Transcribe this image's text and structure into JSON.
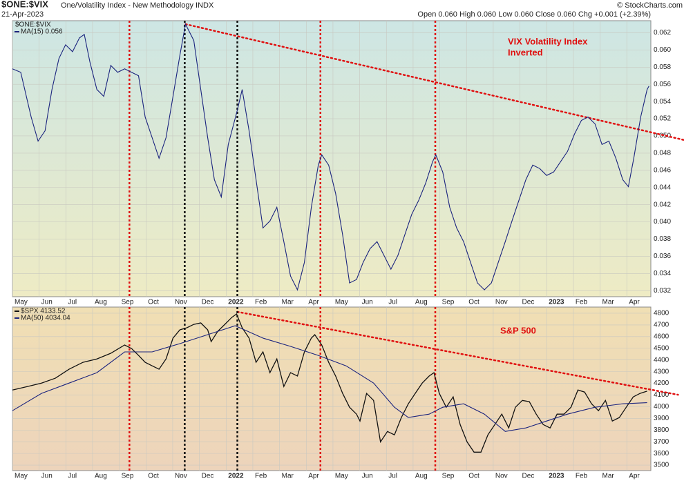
{
  "header": {
    "symbol": "$ONE:$VIX",
    "name": "One/Volatility Index - New Methodology INDX",
    "date": "21-Apr-2023",
    "quote": "Open 0.060  High 0.060  Low 0.060  Close 0.060  Chg +0.001 (+2.39%)",
    "credit": "© StockCharts.com"
  },
  "chart_data": [
    {
      "type": "line",
      "annotation": [
        "VIX Volatility Index",
        "Inverted"
      ],
      "annotation_color": "#e01010",
      "background": [
        "#cde6e4",
        "#eeebc4"
      ],
      "xlim": [
        0,
        23.9
      ],
      "xticks": [
        {
          "value": 0,
          "label": "May"
        },
        {
          "value": 1,
          "label": "Jun"
        },
        {
          "value": 2,
          "label": "Jul"
        },
        {
          "value": 3,
          "label": "Aug"
        },
        {
          "value": 4,
          "label": "Sep"
        },
        {
          "value": 5,
          "label": "Oct"
        },
        {
          "value": 6,
          "label": "Nov"
        },
        {
          "value": 7,
          "label": "Dec"
        },
        {
          "value": 8,
          "label": "2022"
        },
        {
          "value": 9,
          "label": "Feb"
        },
        {
          "value": 10,
          "label": "Mar"
        },
        {
          "value": 11,
          "label": "Apr"
        },
        {
          "value": 12,
          "label": "May"
        },
        {
          "value": 13,
          "label": "Jun"
        },
        {
          "value": 14,
          "label": "Jul"
        },
        {
          "value": 15,
          "label": "Aug"
        },
        {
          "value": 16,
          "label": "Sep"
        },
        {
          "value": 17,
          "label": "Oct"
        },
        {
          "value": 18,
          "label": "Nov"
        },
        {
          "value": 19,
          "label": "Dec"
        },
        {
          "value": 20,
          "label": "2023"
        },
        {
          "value": 21,
          "label": "Feb"
        },
        {
          "value": 22,
          "label": "Mar"
        },
        {
          "value": 23,
          "label": "Apr"
        }
      ],
      "ylim": [
        0.0313,
        0.0634
      ],
      "yticks": [
        {
          "value": 0.032,
          "label": "0.032"
        },
        {
          "value": 0.034,
          "label": "0.034"
        },
        {
          "value": 0.036,
          "label": "0.036"
        },
        {
          "value": 0.038,
          "label": "0.038"
        },
        {
          "value": 0.04,
          "label": "0.040"
        },
        {
          "value": 0.042,
          "label": "0.042"
        },
        {
          "value": 0.044,
          "label": "0.044"
        },
        {
          "value": 0.046,
          "label": "0.046"
        },
        {
          "value": 0.048,
          "label": "0.048"
        },
        {
          "value": 0.05,
          "label": "0.050"
        },
        {
          "value": 0.052,
          "label": "0.052"
        },
        {
          "value": 0.054,
          "label": "0.054"
        },
        {
          "value": 0.056,
          "label": "0.056"
        },
        {
          "value": 0.058,
          "label": "0.058"
        },
        {
          "value": 0.06,
          "label": "0.060"
        },
        {
          "value": 0.062,
          "label": "0.062"
        }
      ],
      "grid": true,
      "legend_label": "$ONE:$VIX",
      "series": [
        {
          "name": "MA(15) 0.056",
          "color": "#1a237e",
          "x": [
            0,
            0.31,
            0.7,
            0.96,
            1.22,
            1.48,
            1.74,
            1.99,
            2.25,
            2.51,
            2.69,
            2.9,
            3.16,
            3.42,
            3.68,
            3.94,
            4.2,
            4.46,
            4.72,
            4.97,
            5.23,
            5.49,
            5.75,
            6.01,
            6.27,
            6.48,
            6.79,
            7.05,
            7.31,
            7.56,
            7.82,
            8.08,
            8.42,
            8.6,
            8.86,
            9.12,
            9.38,
            9.64,
            9.9,
            10.16,
            10.41,
            10.67,
            10.93,
            11.19,
            11.45,
            11.58,
            11.84,
            12.1,
            12.36,
            12.62,
            12.88,
            13.13,
            13.39,
            13.65,
            13.91,
            14.17,
            14.43,
            14.69,
            14.95,
            15.21,
            15.47,
            15.73,
            15.85,
            16.11,
            16.37,
            16.63,
            16.89,
            17.15,
            17.41,
            17.67,
            17.93,
            18.19,
            18.45,
            18.7,
            18.96,
            19.22,
            19.48,
            19.74,
            20.0,
            20.26,
            20.52,
            20.78,
            21.04,
            21.3,
            21.55,
            21.81,
            22.07,
            22.33,
            22.59,
            22.85,
            23.06,
            23.26,
            23.52,
            23.76,
            23.83
          ],
          "values": [
            0.0578,
            0.0574,
            0.0522,
            0.0494,
            0.0506,
            0.0554,
            0.059,
            0.0606,
            0.0598,
            0.0614,
            0.0618,
            0.0586,
            0.0554,
            0.0546,
            0.0582,
            0.0574,
            0.0578,
            0.0574,
            0.057,
            0.0522,
            0.0498,
            0.0474,
            0.0498,
            0.0546,
            0.0594,
            0.063,
            0.0611,
            0.0554,
            0.0498,
            0.0449,
            0.0429,
            0.049,
            0.053,
            0.0554,
            0.0506,
            0.0449,
            0.0393,
            0.0401,
            0.0417,
            0.0377,
            0.0337,
            0.0321,
            0.0353,
            0.0417,
            0.0466,
            0.0478,
            0.0466,
            0.0433,
            0.0385,
            0.0329,
            0.0333,
            0.0353,
            0.0369,
            0.0377,
            0.0361,
            0.0345,
            0.0361,
            0.0385,
            0.0409,
            0.0425,
            0.0445,
            0.047,
            0.0478,
            0.0458,
            0.0417,
            0.0393,
            0.0377,
            0.0353,
            0.0329,
            0.0321,
            0.0329,
            0.0353,
            0.0377,
            0.0401,
            0.0425,
            0.0449,
            0.0466,
            0.0462,
            0.0454,
            0.0458,
            0.047,
            0.0482,
            0.0502,
            0.0518,
            0.0522,
            0.0514,
            0.049,
            0.0494,
            0.0474,
            0.0449,
            0.0441,
            0.0474,
            0.0522,
            0.0554,
            0.0558
          ]
        }
      ],
      "trendline": {
        "x": [
          6.48,
          25.18
        ],
        "y": [
          0.063,
          0.0495
        ],
        "color": "#e01010"
      }
    },
    {
      "type": "line",
      "annotation": [
        "S&P 500"
      ],
      "annotation_color": "#e01010",
      "background": [
        "#f0dfb4",
        "#edd4bb"
      ],
      "xlim": [
        0,
        23.9
      ],
      "xticks": [
        {
          "value": 0,
          "label": "May"
        },
        {
          "value": 1,
          "label": "Jun"
        },
        {
          "value": 2,
          "label": "Jul"
        },
        {
          "value": 3,
          "label": "Aug"
        },
        {
          "value": 4,
          "label": "Sep"
        },
        {
          "value": 5,
          "label": "Oct"
        },
        {
          "value": 6,
          "label": "Nov"
        },
        {
          "value": 7,
          "label": "Dec"
        },
        {
          "value": 8,
          "label": "2022"
        },
        {
          "value": 9,
          "label": "Feb"
        },
        {
          "value": 10,
          "label": "Mar"
        },
        {
          "value": 11,
          "label": "Apr"
        },
        {
          "value": 12,
          "label": "May"
        },
        {
          "value": 13,
          "label": "Jun"
        },
        {
          "value": 14,
          "label": "Jul"
        },
        {
          "value": 15,
          "label": "Aug"
        },
        {
          "value": 16,
          "label": "Sep"
        },
        {
          "value": 17,
          "label": "Oct"
        },
        {
          "value": 18,
          "label": "Nov"
        },
        {
          "value": 19,
          "label": "Dec"
        },
        {
          "value": 20,
          "label": "2023"
        },
        {
          "value": 21,
          "label": "Feb"
        },
        {
          "value": 22,
          "label": "Mar"
        },
        {
          "value": 23,
          "label": "Apr"
        }
      ],
      "ylim": [
        3453,
        4853
      ],
      "yticks": [
        3500,
        3600,
        3700,
        3800,
        3900,
        4000,
        4100,
        4200,
        4300,
        4400,
        4500,
        4600,
        4700,
        4800
      ],
      "grid": true,
      "series": [
        {
          "name": "$SPX 4133.52",
          "color": "#111111",
          "x": [
            0,
            0.57,
            1.09,
            1.61,
            2.12,
            2.64,
            3.16,
            3.68,
            4.2,
            4.46,
            4.72,
            4.97,
            5.23,
            5.49,
            5.75,
            6.01,
            6.27,
            6.53,
            6.79,
            7.05,
            7.31,
            7.44,
            7.69,
            7.95,
            8.21,
            8.39,
            8.6,
            8.86,
            9.12,
            9.38,
            9.64,
            9.9,
            10.16,
            10.41,
            10.67,
            10.93,
            11.19,
            11.32,
            11.58,
            11.84,
            12.1,
            12.36,
            12.62,
            12.88,
            13.01,
            13.26,
            13.52,
            13.78,
            14.04,
            14.3,
            14.56,
            14.82,
            15.08,
            15.34,
            15.6,
            15.78,
            15.98,
            16.24,
            16.5,
            16.76,
            17.02,
            17.28,
            17.54,
            17.8,
            18.06,
            18.32,
            18.58,
            18.83,
            19.09,
            19.35,
            19.61,
            19.87,
            20.13,
            20.39,
            20.65,
            20.91,
            21.17,
            21.42,
            21.68,
            21.94,
            22.2,
            22.46,
            22.72,
            22.98,
            23.24,
            23.5,
            23.76
          ],
          "values": [
            4143,
            4173,
            4202,
            4244,
            4321,
            4380,
            4409,
            4457,
            4528,
            4498,
            4439,
            4380,
            4350,
            4321,
            4409,
            4587,
            4658,
            4676,
            4705,
            4717,
            4658,
            4557,
            4646,
            4705,
            4764,
            4794,
            4676,
            4587,
            4380,
            4469,
            4291,
            4409,
            4173,
            4291,
            4262,
            4469,
            4587,
            4617,
            4528,
            4380,
            4262,
            4114,
            3995,
            3936,
            3877,
            4114,
            4054,
            3699,
            3788,
            3759,
            3907,
            4025,
            4114,
            4202,
            4262,
            4291,
            4114,
            3995,
            4084,
            3847,
            3699,
            3611,
            3611,
            3759,
            3847,
            3936,
            3818,
            3995,
            4054,
            4043,
            3936,
            3847,
            3818,
            3936,
            3936,
            3995,
            4143,
            4125,
            4025,
            3966,
            4054,
            3877,
            3907,
            3995,
            4084,
            4114,
            4133
          ]
        },
        {
          "name": "MA(50) 4034.04",
          "color": "#1a237e",
          "x": [
            0,
            1.09,
            2.12,
            3.16,
            4.2,
            5.23,
            6.27,
            7.31,
            8.34,
            9.38,
            10.41,
            11.45,
            12.49,
            13.52,
            14.3,
            14.82,
            15.6,
            16.11,
            16.89,
            17.67,
            18.45,
            19.22,
            20.0,
            20.78,
            21.81,
            22.85,
            23.76
          ],
          "values": [
            3966,
            4114,
            4202,
            4291,
            4469,
            4469,
            4540,
            4617,
            4693,
            4587,
            4516,
            4439,
            4350,
            4202,
            3995,
            3907,
            3936,
            3995,
            4025,
            3936,
            3788,
            3818,
            3877,
            3936,
            3995,
            4025,
            4034
          ]
        }
      ],
      "trendline": {
        "x": [
          8.42,
          24.92
        ],
        "y": [
          4812,
          4102
        ],
        "color": "#e01010"
      }
    }
  ],
  "vertical_lines": [
    {
      "x": 4.38,
      "color": "#e01010"
    },
    {
      "x": 6.45,
      "color": "#111111"
    },
    {
      "x": 8.42,
      "color": "#111111"
    },
    {
      "x": 11.53,
      "color": "#e01010"
    },
    {
      "x": 15.83,
      "color": "#e01010"
    }
  ]
}
